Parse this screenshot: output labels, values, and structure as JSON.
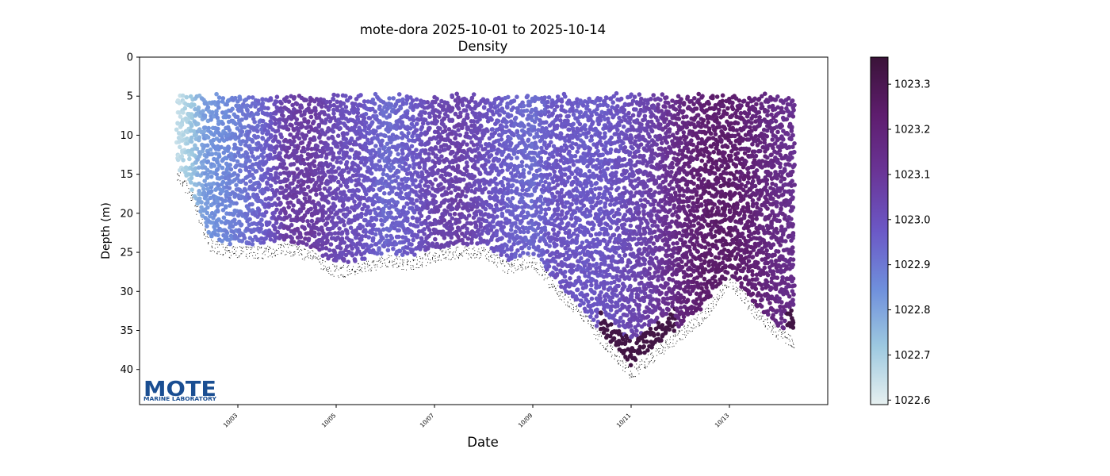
{
  "chart_data": {
    "type": "scatter",
    "title": "mote-dora 2025-10-01 to 2025-10-14",
    "subtitle": "Density",
    "xlabel": "Date",
    "ylabel": "Depth (m)",
    "x_axis": {
      "kind": "date",
      "range": [
        "2025-10-01T00:00",
        "2025-10-15T00:00"
      ],
      "ticks": [
        {
          "value": "2025-10-03",
          "label": "10/03"
        },
        {
          "value": "2025-10-05",
          "label": "10/05"
        },
        {
          "value": "2025-10-07",
          "label": "10/07"
        },
        {
          "value": "2025-10-09",
          "label": "10/09"
        },
        {
          "value": "2025-10-11",
          "label": "10/11"
        },
        {
          "value": "2025-10-13",
          "label": "10/13"
        }
      ]
    },
    "y_axis": {
      "inverted": true,
      "range": [
        0,
        44.5
      ],
      "ticks": [
        0,
        5,
        10,
        15,
        20,
        25,
        30,
        35,
        40
      ]
    },
    "colorbar": {
      "label": "",
      "range": [
        1022.59,
        1023.36
      ],
      "ticks": [
        {
          "value": 1022.6,
          "label": "1022.6"
        },
        {
          "value": 1022.7,
          "label": "1022.7"
        },
        {
          "value": 1022.8,
          "label": "1022.8"
        },
        {
          "value": 1022.9,
          "label": "1022.9"
        },
        {
          "value": 1023.0,
          "label": "1023.0"
        },
        {
          "value": 1023.1,
          "label": "1023.1"
        },
        {
          "value": 1023.2,
          "label": "1023.2"
        },
        {
          "value": 1023.3,
          "label": "1023.3"
        }
      ],
      "colormap": [
        "#e6f0f0",
        "#9dc9e0",
        "#6f8fdc",
        "#6b58c6",
        "#6a3597",
        "#5e1d6e",
        "#3a1338"
      ]
    },
    "glider_profile_bottom": [
      {
        "date": "2025-10-01T18:00",
        "depth": 14
      },
      {
        "date": "2025-10-02T00:00",
        "depth": 16
      },
      {
        "date": "2025-10-02T10:00",
        "depth": 23
      },
      {
        "date": "2025-10-02T20:00",
        "depth": 24
      },
      {
        "date": "2025-10-03T12:00",
        "depth": 24
      },
      {
        "date": "2025-10-04T00:00",
        "depth": 23.5
      },
      {
        "date": "2025-10-04T12:00",
        "depth": 24.5
      },
      {
        "date": "2025-10-05T00:00",
        "depth": 26.5
      },
      {
        "date": "2025-10-05T12:00",
        "depth": 26
      },
      {
        "date": "2025-10-06T00:00",
        "depth": 25
      },
      {
        "date": "2025-10-06T12:00",
        "depth": 25.5
      },
      {
        "date": "2025-10-07T00:00",
        "depth": 24.5
      },
      {
        "date": "2025-10-07T12:00",
        "depth": 24
      },
      {
        "date": "2025-10-08T00:00",
        "depth": 24
      },
      {
        "date": "2025-10-08T12:00",
        "depth": 26
      },
      {
        "date": "2025-10-09T00:00",
        "depth": 25
      },
      {
        "date": "2025-10-09T12:00",
        "depth": 29
      },
      {
        "date": "2025-10-10T00:00",
        "depth": 32
      },
      {
        "date": "2025-10-10T12:00",
        "depth": 36
      },
      {
        "date": "2025-10-11T00:00",
        "depth": 39.5
      },
      {
        "date": "2025-10-11T12:00",
        "depth": 37
      },
      {
        "date": "2025-10-12T00:00",
        "depth": 34.5
      },
      {
        "date": "2025-10-12T12:00",
        "depth": 32
      },
      {
        "date": "2025-10-13T00:00",
        "depth": 27.5
      },
      {
        "date": "2025-10-13T12:00",
        "depth": 31.5
      },
      {
        "date": "2025-10-14T00:00",
        "depth": 34.5
      },
      {
        "date": "2025-10-14T08:00",
        "depth": 35.5
      }
    ],
    "density_trend": [
      {
        "date": "2025-10-01T14:00",
        "density": 1022.62
      },
      {
        "date": "2025-10-02T00:00",
        "density": 1022.7
      },
      {
        "date": "2025-10-02T08:00",
        "density": 1022.82
      },
      {
        "date": "2025-10-02T20:00",
        "density": 1022.87
      },
      {
        "date": "2025-10-03T12:00",
        "density": 1022.95
      },
      {
        "date": "2025-10-04T00:00",
        "density": 1023.07
      },
      {
        "date": "2025-10-04T12:00",
        "density": 1023.08
      },
      {
        "date": "2025-10-05T00:00",
        "density": 1023.02
      },
      {
        "date": "2025-10-05T12:00",
        "density": 1023.0
      },
      {
        "date": "2025-10-06T00:00",
        "density": 1022.93
      },
      {
        "date": "2025-10-06T12:00",
        "density": 1022.97
      },
      {
        "date": "2025-10-07T00:00",
        "density": 1023.04
      },
      {
        "date": "2025-10-07T12:00",
        "density": 1023.06
      },
      {
        "date": "2025-10-08T00:00",
        "density": 1023.01
      },
      {
        "date": "2025-10-08T12:00",
        "density": 1022.96
      },
      {
        "date": "2025-10-09T00:00",
        "density": 1022.93
      },
      {
        "date": "2025-10-09T12:00",
        "density": 1022.99
      },
      {
        "date": "2025-10-10T00:00",
        "density": 1022.97
      },
      {
        "date": "2025-10-10T12:00",
        "density": 1022.98
      },
      {
        "date": "2025-10-11T00:00",
        "density": 1023.02
      },
      {
        "date": "2025-10-11T12:00",
        "density": 1023.07
      },
      {
        "date": "2025-10-12T00:00",
        "density": 1023.17
      },
      {
        "date": "2025-10-12T12:00",
        "density": 1023.23
      },
      {
        "date": "2025-10-13T00:00",
        "density": 1023.24
      },
      {
        "date": "2025-10-13T12:00",
        "density": 1023.2
      },
      {
        "date": "2025-10-14T00:00",
        "density": 1023.15
      },
      {
        "date": "2025-10-14T08:00",
        "density": 1023.13
      }
    ],
    "surface_depth": 5,
    "grid": false
  },
  "logo": {
    "main": "MOTE",
    "sub": "MARINE LABORATORY",
    "color": "#1a4e92"
  }
}
